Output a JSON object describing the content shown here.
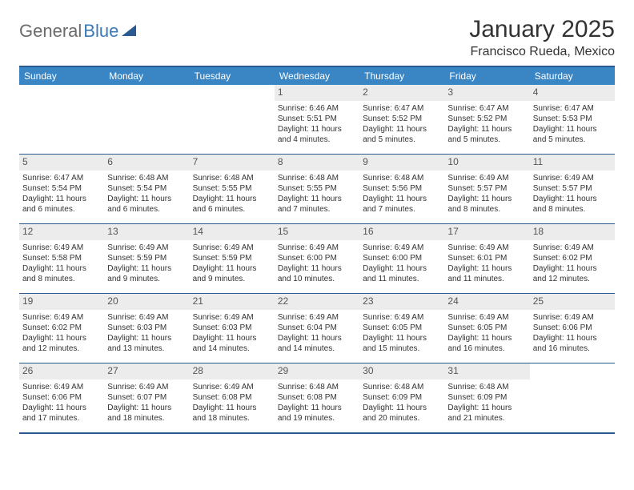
{
  "logo": {
    "part1": "General",
    "part2": "Blue"
  },
  "title": "January 2025",
  "location": "Francisco Rueda, Mexico",
  "colors": {
    "header_bg": "#3a85c4",
    "border": "#2a5a8f",
    "daynum_bg": "#ececec",
    "text": "#333333"
  },
  "day_headers": [
    "Sunday",
    "Monday",
    "Tuesday",
    "Wednesday",
    "Thursday",
    "Friday",
    "Saturday"
  ],
  "weeks": [
    [
      {
        "blank": true
      },
      {
        "blank": true
      },
      {
        "blank": true
      },
      {
        "n": "1",
        "sr": "Sunrise: 6:46 AM",
        "ss": "Sunset: 5:51 PM",
        "d1": "Daylight: 11 hours",
        "d2": "and 4 minutes."
      },
      {
        "n": "2",
        "sr": "Sunrise: 6:47 AM",
        "ss": "Sunset: 5:52 PM",
        "d1": "Daylight: 11 hours",
        "d2": "and 5 minutes."
      },
      {
        "n": "3",
        "sr": "Sunrise: 6:47 AM",
        "ss": "Sunset: 5:52 PM",
        "d1": "Daylight: 11 hours",
        "d2": "and 5 minutes."
      },
      {
        "n": "4",
        "sr": "Sunrise: 6:47 AM",
        "ss": "Sunset: 5:53 PM",
        "d1": "Daylight: 11 hours",
        "d2": "and 5 minutes."
      }
    ],
    [
      {
        "n": "5",
        "sr": "Sunrise: 6:47 AM",
        "ss": "Sunset: 5:54 PM",
        "d1": "Daylight: 11 hours",
        "d2": "and 6 minutes."
      },
      {
        "n": "6",
        "sr": "Sunrise: 6:48 AM",
        "ss": "Sunset: 5:54 PM",
        "d1": "Daylight: 11 hours",
        "d2": "and 6 minutes."
      },
      {
        "n": "7",
        "sr": "Sunrise: 6:48 AM",
        "ss": "Sunset: 5:55 PM",
        "d1": "Daylight: 11 hours",
        "d2": "and 6 minutes."
      },
      {
        "n": "8",
        "sr": "Sunrise: 6:48 AM",
        "ss": "Sunset: 5:55 PM",
        "d1": "Daylight: 11 hours",
        "d2": "and 7 minutes."
      },
      {
        "n": "9",
        "sr": "Sunrise: 6:48 AM",
        "ss": "Sunset: 5:56 PM",
        "d1": "Daylight: 11 hours",
        "d2": "and 7 minutes."
      },
      {
        "n": "10",
        "sr": "Sunrise: 6:49 AM",
        "ss": "Sunset: 5:57 PM",
        "d1": "Daylight: 11 hours",
        "d2": "and 8 minutes."
      },
      {
        "n": "11",
        "sr": "Sunrise: 6:49 AM",
        "ss": "Sunset: 5:57 PM",
        "d1": "Daylight: 11 hours",
        "d2": "and 8 minutes."
      }
    ],
    [
      {
        "n": "12",
        "sr": "Sunrise: 6:49 AM",
        "ss": "Sunset: 5:58 PM",
        "d1": "Daylight: 11 hours",
        "d2": "and 8 minutes."
      },
      {
        "n": "13",
        "sr": "Sunrise: 6:49 AM",
        "ss": "Sunset: 5:59 PM",
        "d1": "Daylight: 11 hours",
        "d2": "and 9 minutes."
      },
      {
        "n": "14",
        "sr": "Sunrise: 6:49 AM",
        "ss": "Sunset: 5:59 PM",
        "d1": "Daylight: 11 hours",
        "d2": "and 9 minutes."
      },
      {
        "n": "15",
        "sr": "Sunrise: 6:49 AM",
        "ss": "Sunset: 6:00 PM",
        "d1": "Daylight: 11 hours",
        "d2": "and 10 minutes."
      },
      {
        "n": "16",
        "sr": "Sunrise: 6:49 AM",
        "ss": "Sunset: 6:00 PM",
        "d1": "Daylight: 11 hours",
        "d2": "and 11 minutes."
      },
      {
        "n": "17",
        "sr": "Sunrise: 6:49 AM",
        "ss": "Sunset: 6:01 PM",
        "d1": "Daylight: 11 hours",
        "d2": "and 11 minutes."
      },
      {
        "n": "18",
        "sr": "Sunrise: 6:49 AM",
        "ss": "Sunset: 6:02 PM",
        "d1": "Daylight: 11 hours",
        "d2": "and 12 minutes."
      }
    ],
    [
      {
        "n": "19",
        "sr": "Sunrise: 6:49 AM",
        "ss": "Sunset: 6:02 PM",
        "d1": "Daylight: 11 hours",
        "d2": "and 12 minutes."
      },
      {
        "n": "20",
        "sr": "Sunrise: 6:49 AM",
        "ss": "Sunset: 6:03 PM",
        "d1": "Daylight: 11 hours",
        "d2": "and 13 minutes."
      },
      {
        "n": "21",
        "sr": "Sunrise: 6:49 AM",
        "ss": "Sunset: 6:03 PM",
        "d1": "Daylight: 11 hours",
        "d2": "and 14 minutes."
      },
      {
        "n": "22",
        "sr": "Sunrise: 6:49 AM",
        "ss": "Sunset: 6:04 PM",
        "d1": "Daylight: 11 hours",
        "d2": "and 14 minutes."
      },
      {
        "n": "23",
        "sr": "Sunrise: 6:49 AM",
        "ss": "Sunset: 6:05 PM",
        "d1": "Daylight: 11 hours",
        "d2": "and 15 minutes."
      },
      {
        "n": "24",
        "sr": "Sunrise: 6:49 AM",
        "ss": "Sunset: 6:05 PM",
        "d1": "Daylight: 11 hours",
        "d2": "and 16 minutes."
      },
      {
        "n": "25",
        "sr": "Sunrise: 6:49 AM",
        "ss": "Sunset: 6:06 PM",
        "d1": "Daylight: 11 hours",
        "d2": "and 16 minutes."
      }
    ],
    [
      {
        "n": "26",
        "sr": "Sunrise: 6:49 AM",
        "ss": "Sunset: 6:06 PM",
        "d1": "Daylight: 11 hours",
        "d2": "and 17 minutes."
      },
      {
        "n": "27",
        "sr": "Sunrise: 6:49 AM",
        "ss": "Sunset: 6:07 PM",
        "d1": "Daylight: 11 hours",
        "d2": "and 18 minutes."
      },
      {
        "n": "28",
        "sr": "Sunrise: 6:49 AM",
        "ss": "Sunset: 6:08 PM",
        "d1": "Daylight: 11 hours",
        "d2": "and 18 minutes."
      },
      {
        "n": "29",
        "sr": "Sunrise: 6:48 AM",
        "ss": "Sunset: 6:08 PM",
        "d1": "Daylight: 11 hours",
        "d2": "and 19 minutes."
      },
      {
        "n": "30",
        "sr": "Sunrise: 6:48 AM",
        "ss": "Sunset: 6:09 PM",
        "d1": "Daylight: 11 hours",
        "d2": "and 20 minutes."
      },
      {
        "n": "31",
        "sr": "Sunrise: 6:48 AM",
        "ss": "Sunset: 6:09 PM",
        "d1": "Daylight: 11 hours",
        "d2": "and 21 minutes."
      },
      {
        "blank": true
      }
    ]
  ]
}
